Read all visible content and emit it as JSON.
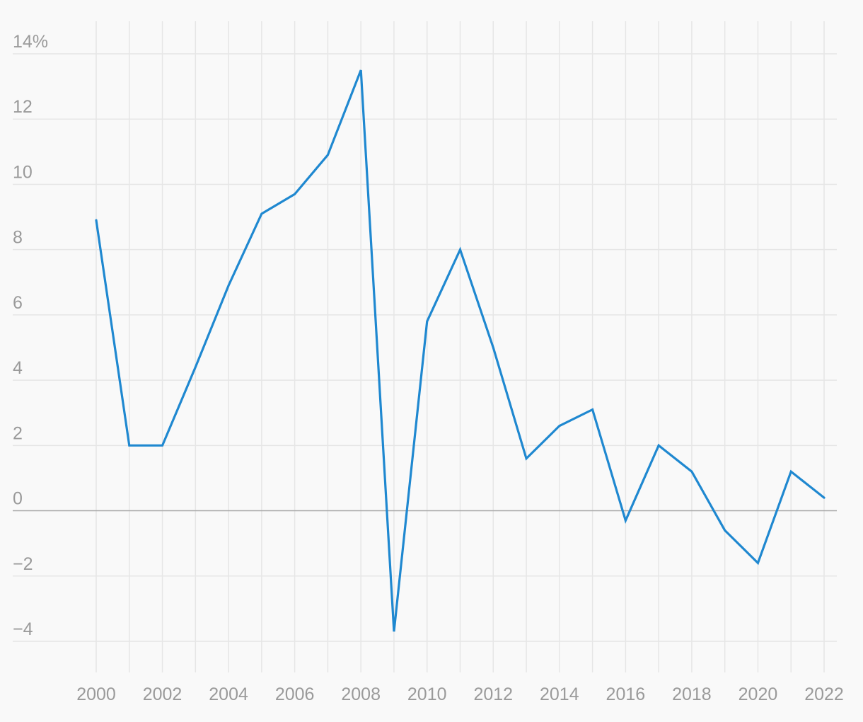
{
  "chart_data": {
    "type": "line",
    "title": "",
    "xlabel": "",
    "ylabel": "",
    "y_unit_suffix": "%",
    "xlim": [
      2000,
      2022
    ],
    "ylim": [
      -5,
      14
    ],
    "x_ticks": [
      2000,
      2002,
      2004,
      2006,
      2008,
      2010,
      2012,
      2014,
      2016,
      2018,
      2020,
      2022
    ],
    "x_tick_labels": [
      "2000",
      "2002",
      "2004",
      "2006",
      "2008",
      "2010",
      "2012",
      "2014",
      "2016",
      "2018",
      "2020",
      "2022"
    ],
    "y_ticks": [
      14,
      12,
      10,
      8,
      6,
      4,
      2,
      0,
      -2,
      -4
    ],
    "y_tick_labels": [
      "14%",
      "12",
      "10",
      "8",
      "6",
      "4",
      "2",
      "0",
      "−2",
      "−4"
    ],
    "vertical_grid_x": [
      2000,
      2001,
      2002,
      2003,
      2004,
      2005,
      2006,
      2007,
      2008,
      2009,
      2010,
      2011,
      2012,
      2013,
      2014,
      2015,
      2016,
      2017,
      2018,
      2019,
      2020,
      2021,
      2022
    ],
    "grid": true,
    "legend": "none",
    "series": [
      {
        "color": "#1f88d0",
        "x": [
          2000,
          2001,
          2002,
          2003,
          2004,
          2005,
          2006,
          2007,
          2008,
          2009,
          2010,
          2011,
          2012,
          2013,
          2014,
          2015,
          2016,
          2017,
          2018,
          2019,
          2020,
          2021,
          2022
        ],
        "values": [
          8.9,
          2.0,
          2.0,
          4.4,
          6.9,
          9.1,
          9.7,
          10.9,
          13.5,
          -3.7,
          5.8,
          8.0,
          5.0,
          1.6,
          2.6,
          3.1,
          -0.3,
          2.0,
          1.2,
          -0.6,
          -1.6,
          1.2,
          0.4
        ]
      }
    ]
  }
}
